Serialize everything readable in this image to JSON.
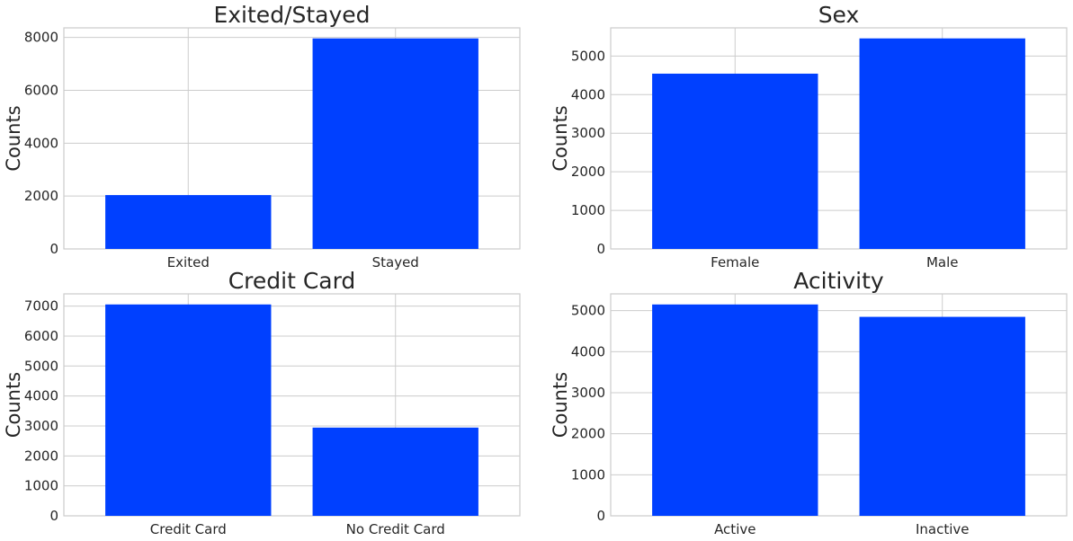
{
  "colors": {
    "bar": "#0040ff",
    "grid": "#cccccc",
    "text": "#262626"
  },
  "chart_data": [
    {
      "type": "bar",
      "title": "Exited/Stayed",
      "xlabel": "",
      "ylabel": "Counts",
      "categories": [
        "Exited",
        "Stayed"
      ],
      "values": [
        2037,
        7963
      ],
      "ylim": [
        0,
        8362
      ],
      "yticks": [
        0,
        2000,
        4000,
        6000,
        8000
      ],
      "grid": true
    },
    {
      "type": "bar",
      "title": "Sex",
      "xlabel": "",
      "ylabel": "Counts",
      "categories": [
        "Female",
        "Male"
      ],
      "values": [
        4543,
        5457
      ],
      "ylim": [
        0,
        5730
      ],
      "yticks": [
        0,
        1000,
        2000,
        3000,
        4000,
        5000
      ],
      "grid": true
    },
    {
      "type": "bar",
      "title": "Credit Card",
      "xlabel": "",
      "ylabel": "Counts",
      "categories": [
        "Credit Card",
        "No Credit Card"
      ],
      "values": [
        7055,
        2945
      ],
      "ylim": [
        0,
        7408
      ],
      "yticks": [
        0,
        1000,
        2000,
        3000,
        4000,
        5000,
        6000,
        7000
      ],
      "grid": true
    },
    {
      "type": "bar",
      "title": "Acitivity",
      "xlabel": "",
      "ylabel": "Counts",
      "categories": [
        "Active",
        "Inactive"
      ],
      "values": [
        5151,
        4849
      ],
      "ylim": [
        0,
        5409
      ],
      "yticks": [
        0,
        1000,
        2000,
        3000,
        4000,
        5000
      ],
      "grid": true
    }
  ]
}
